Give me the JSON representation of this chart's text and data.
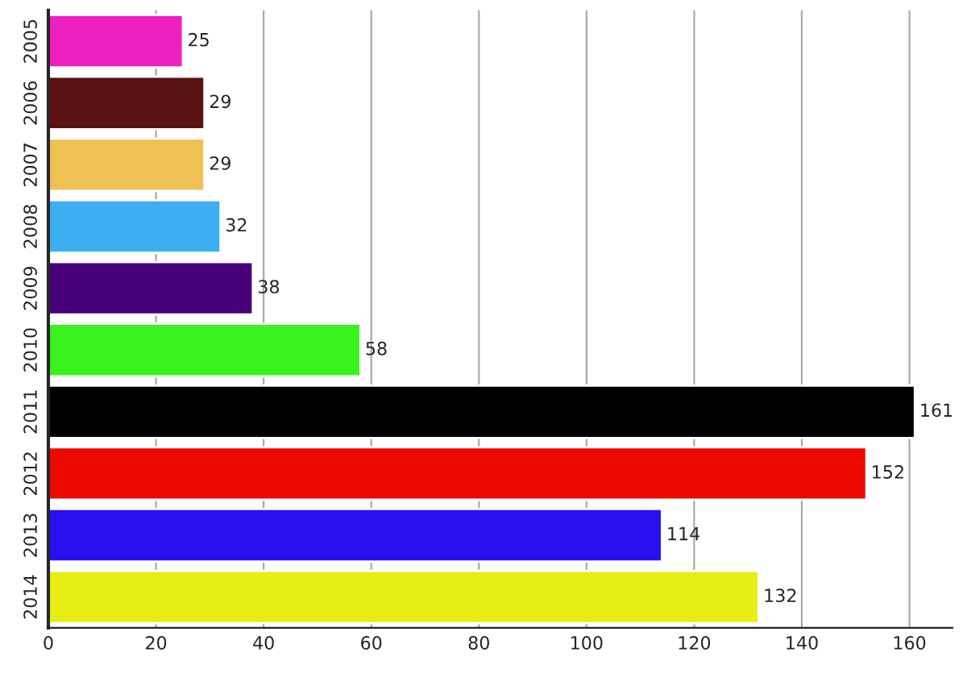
{
  "chart_data": {
    "type": "bar",
    "orientation": "horizontal",
    "categories": [
      "2005",
      "2006",
      "2007",
      "2008",
      "2009",
      "2010",
      "2011",
      "2012",
      "2013",
      "2014"
    ],
    "values": [
      25,
      29,
      29,
      32,
      38,
      58,
      161,
      152,
      114,
      132
    ],
    "colors": [
      "#ee1fc0",
      "#5a1212",
      "#efc155",
      "#3daeef",
      "#480078",
      "#3af21e",
      "#000000",
      "#ec0a00",
      "#2a0ff0",
      "#e6ef14"
    ],
    "xlim": [
      0,
      168
    ],
    "xticks": [
      0,
      20,
      40,
      60,
      80,
      100,
      120,
      140,
      160
    ],
    "grid": "x",
    "data_labels": true
  }
}
